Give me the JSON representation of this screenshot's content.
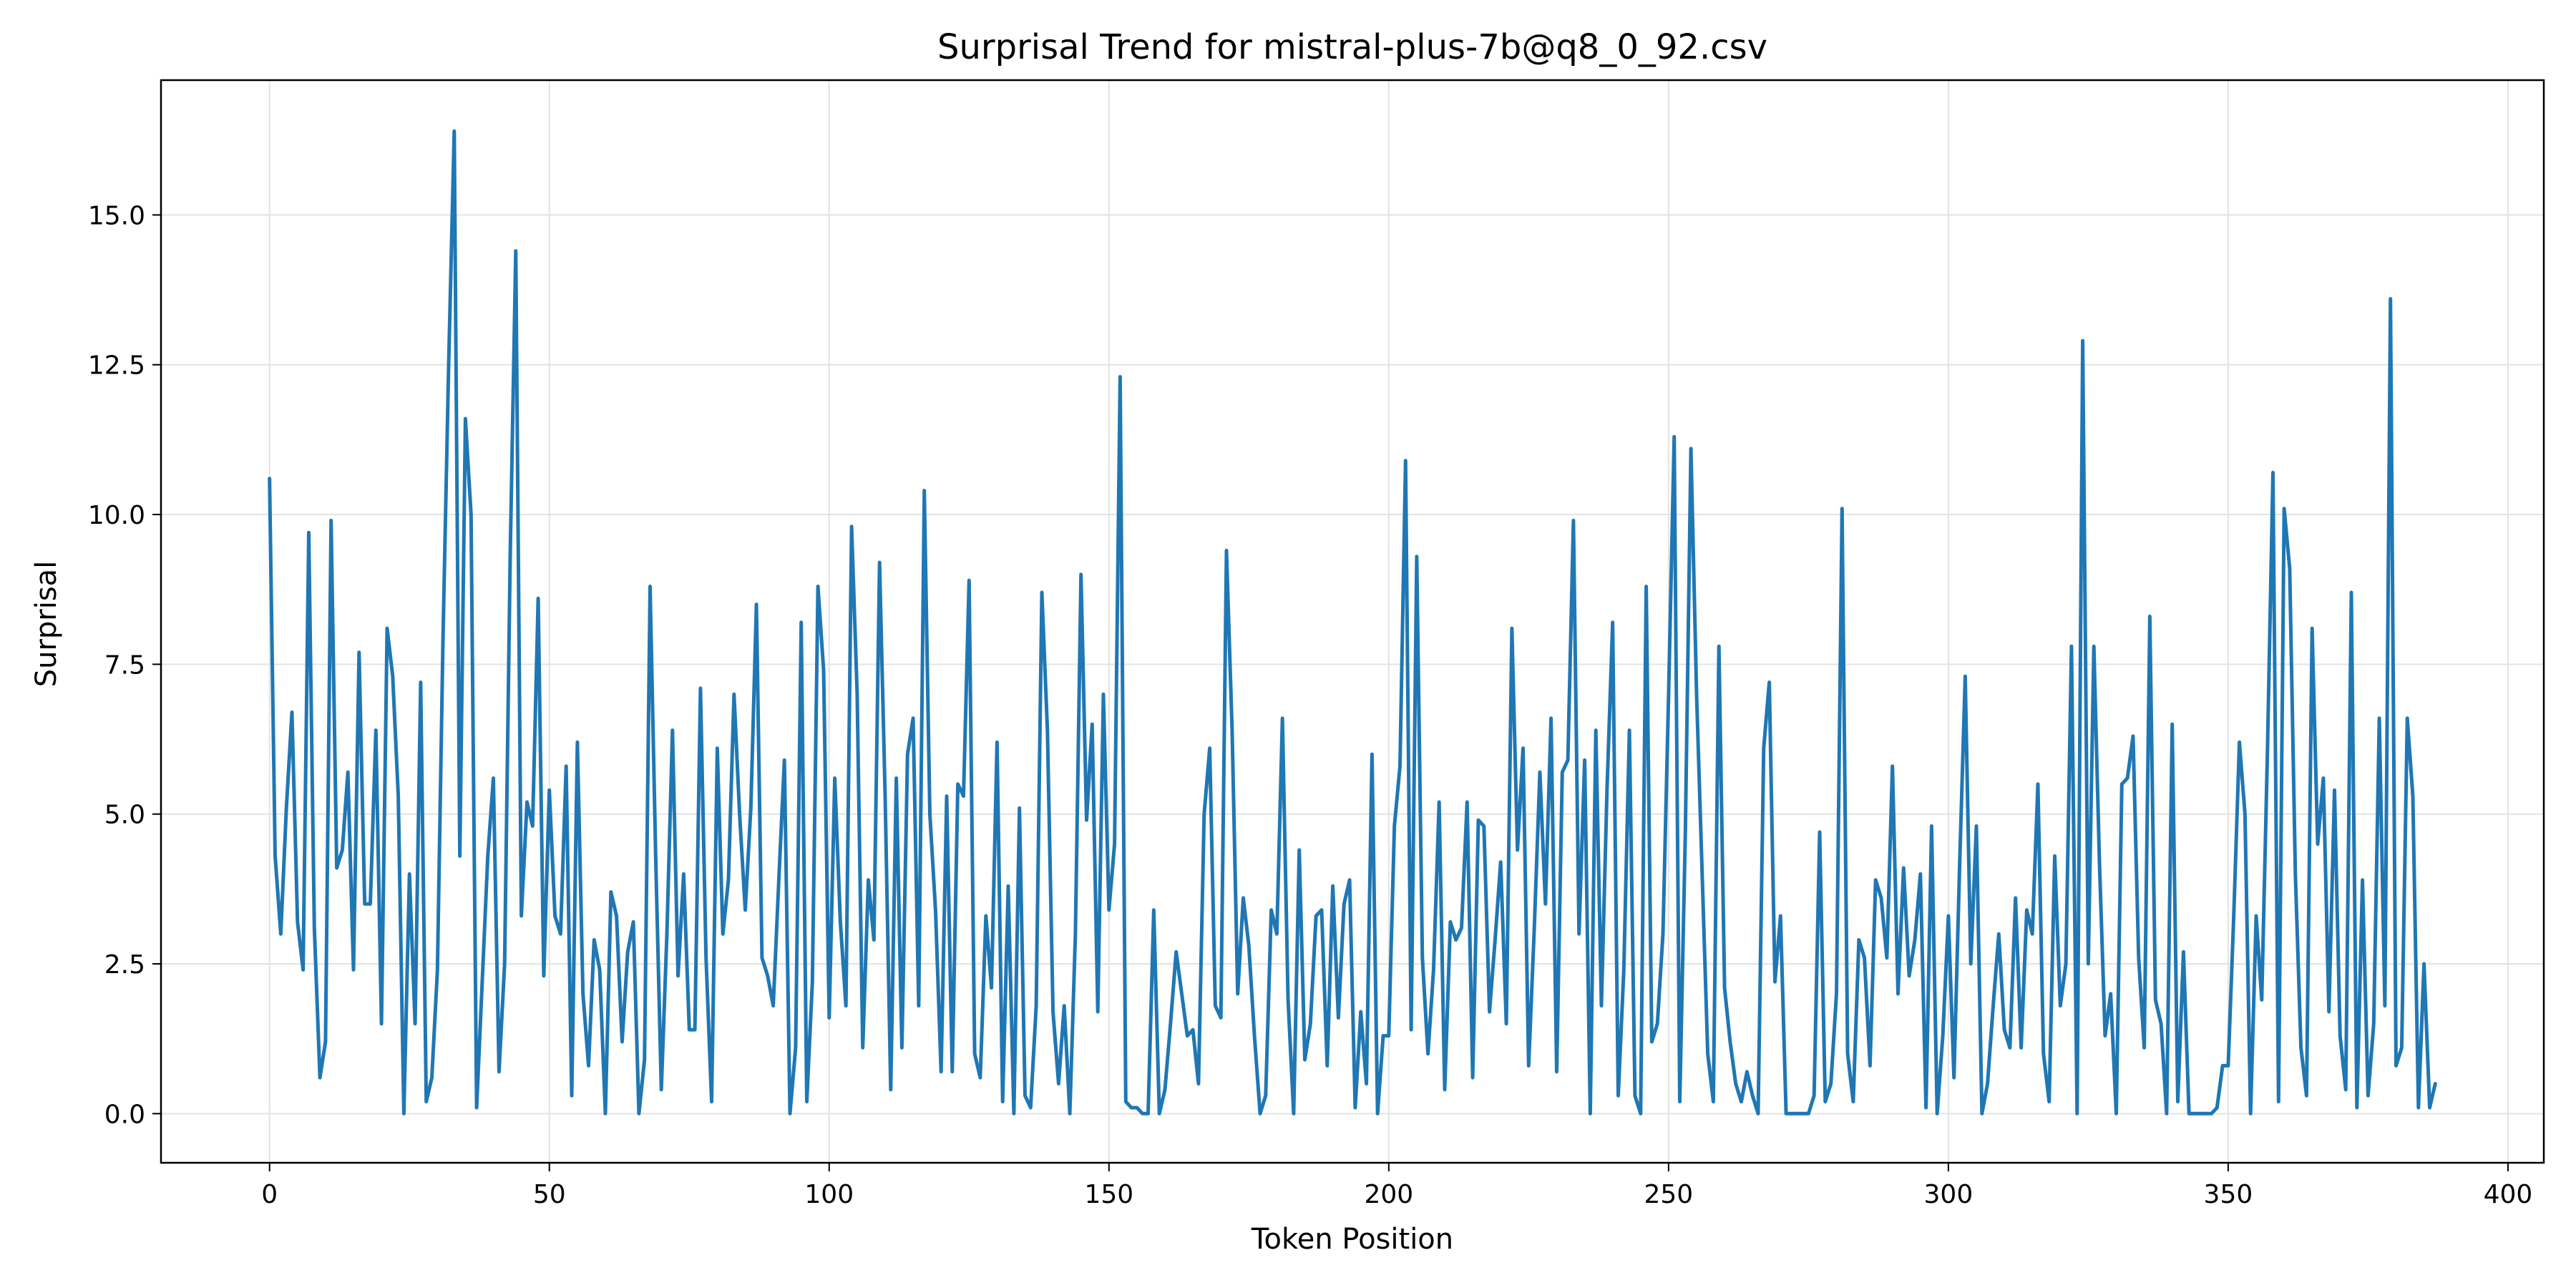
{
  "chart_data": {
    "type": "line",
    "title": "Surprisal Trend for mistral-plus-7b@q8_0_92.csv",
    "xlabel": "Token Position",
    "ylabel": "Surprisal",
    "xlim": [
      -19.4,
      406.4
    ],
    "ylim": [
      -0.82,
      17.25
    ],
    "xticks": [
      0,
      50,
      100,
      150,
      200,
      250,
      300,
      350,
      400
    ],
    "xtick_labels": [
      "0",
      "50",
      "100",
      "150",
      "200",
      "250",
      "300",
      "350",
      "400"
    ],
    "yticks": [
      0,
      2.5,
      5,
      7.5,
      10,
      12.5,
      15
    ],
    "ytick_labels": [
      "0.0",
      "2.5",
      "5.0",
      "7.5",
      "10.0",
      "12.5",
      "15.0"
    ],
    "grid": true,
    "legend": "none",
    "series": [
      {
        "color": "#1f77b4",
        "x_start": 0,
        "x_step": 1,
        "values": [
          10.6,
          4.3,
          3.0,
          5.1,
          6.7,
          3.2,
          2.4,
          9.7,
          3.1,
          0.6,
          1.2,
          9.9,
          4.1,
          4.4,
          5.7,
          2.4,
          7.7,
          3.5,
          3.5,
          6.4,
          1.5,
          8.1,
          7.3,
          5.3,
          0.0,
          4.0,
          1.5,
          7.2,
          0.2,
          0.6,
          2.4,
          8.0,
          12.5,
          16.4,
          4.3,
          11.6,
          10.0,
          0.1,
          2.2,
          4.3,
          5.6,
          0.7,
          2.5,
          9.3,
          14.4,
          3.3,
          5.2,
          4.8,
          8.6,
          2.3,
          5.4,
          3.3,
          3.0,
          5.8,
          0.3,
          6.2,
          2.0,
          0.8,
          2.9,
          2.4,
          0.0,
          3.7,
          3.3,
          1.2,
          2.7,
          3.2,
          0.0,
          0.9,
          8.8,
          4.3,
          0.4,
          3.0,
          6.4,
          2.3,
          4.0,
          1.4,
          1.4,
          7.1,
          2.6,
          0.2,
          6.1,
          3.0,
          3.9,
          7.0,
          5.0,
          3.4,
          5.1,
          8.5,
          2.6,
          2.3,
          1.8,
          3.9,
          5.9,
          0.0,
          1.1,
          8.2,
          0.2,
          2.2,
          8.8,
          7.4,
          1.6,
          5.6,
          3.2,
          1.8,
          9.8,
          7.0,
          1.1,
          3.9,
          2.9,
          9.2,
          5.3,
          0.4,
          5.6,
          1.1,
          6.0,
          6.6,
          1.8,
          10.4,
          5.0,
          3.4,
          0.7,
          5.3,
          0.7,
          5.5,
          5.3,
          8.9,
          1.0,
          0.6,
          3.3,
          2.1,
          6.2,
          0.2,
          3.8,
          0.0,
          5.1,
          0.3,
          0.1,
          1.8,
          8.7,
          6.4,
          1.7,
          0.5,
          1.8,
          0.0,
          3.0,
          9.0,
          4.9,
          6.5,
          1.7,
          7.0,
          3.4,
          4.5,
          12.3,
          0.2,
          0.1,
          0.1,
          0.0,
          0.0,
          3.4,
          0.0,
          0.4,
          1.5,
          2.7,
          2.0,
          1.3,
          1.4,
          0.5,
          5.0,
          6.1,
          1.8,
          1.6,
          9.4,
          6.4,
          2.0,
          3.6,
          2.8,
          1.3,
          0.0,
          0.3,
          3.4,
          3.0,
          6.6,
          1.9,
          0.0,
          4.4,
          0.9,
          1.5,
          3.3,
          3.4,
          0.8,
          3.8,
          1.6,
          3.5,
          3.9,
          0.1,
          1.7,
          0.5,
          6.0,
          0.0,
          1.3,
          1.3,
          4.8,
          5.8,
          10.9,
          1.4,
          9.3,
          2.6,
          1.0,
          2.4,
          5.2,
          0.4,
          3.2,
          2.9,
          3.1,
          5.2,
          0.6,
          4.9,
          4.8,
          1.7,
          2.9,
          4.2,
          1.5,
          8.1,
          4.4,
          6.1,
          0.8,
          3.1,
          5.7,
          3.5,
          6.6,
          0.7,
          5.7,
          5.9,
          9.9,
          3.0,
          5.9,
          0.0,
          6.4,
          1.8,
          5.4,
          8.2,
          0.3,
          2.4,
          6.4,
          0.3,
          0.0,
          8.8,
          1.2,
          1.5,
          3.0,
          7.0,
          11.3,
          0.2,
          4.7,
          11.1,
          7.0,
          4.0,
          1.0,
          0.2,
          7.8,
          2.1,
          1.2,
          0.5,
          0.2,
          0.7,
          0.3,
          0.0,
          6.1,
          7.2,
          2.2,
          3.3,
          0.0,
          0.0,
          0.0,
          0.0,
          0.0,
          0.3,
          4.7,
          0.2,
          0.5,
          2.0,
          10.1,
          1.0,
          0.2,
          2.9,
          2.6,
          0.8,
          3.9,
          3.6,
          2.6,
          5.8,
          2.0,
          4.1,
          2.3,
          2.9,
          4.0,
          0.1,
          4.8,
          0.0,
          1.3,
          3.3,
          0.6,
          4.1,
          7.3,
          2.5,
          4.8,
          0.0,
          0.5,
          1.8,
          3.0,
          1.4,
          1.1,
          3.6,
          1.1,
          3.4,
          3.0,
          5.5,
          1.0,
          0.2,
          4.3,
          1.8,
          2.5,
          7.8,
          0.0,
          12.9,
          2.5,
          7.8,
          4.2,
          1.3,
          2.0,
          0.0,
          5.5,
          5.6,
          6.3,
          2.6,
          1.1,
          8.3,
          1.9,
          1.5,
          0.0,
          6.5,
          0.2,
          2.7,
          0.0,
          0.0,
          0.0,
          0.0,
          0.0,
          0.1,
          0.8,
          0.8,
          3.3,
          6.2,
          5.0,
          0.0,
          3.3,
          1.9,
          6.0,
          10.7,
          0.2,
          10.1,
          9.1,
          4.0,
          1.1,
          0.3,
          8.1,
          4.5,
          5.6,
          1.7,
          5.4,
          1.3,
          0.4,
          8.7,
          0.1,
          3.9,
          0.3,
          1.5,
          6.6,
          1.8,
          13.6,
          0.8,
          1.1,
          6.6,
          5.3,
          0.1,
          2.5,
          0.1,
          0.5
        ]
      }
    ]
  }
}
